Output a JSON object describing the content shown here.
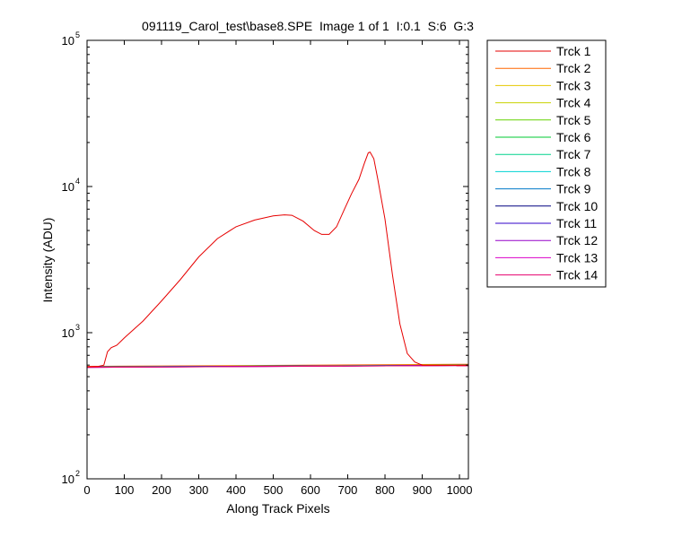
{
  "chart_data": {
    "type": "line",
    "title": "091119_Carol_test\\base8.SPE  Image 1 of 1  I:0.1  S:6  G:3",
    "xlabel": "Along Track Pixels",
    "ylabel": "Intensity (ADU)",
    "xlim": [
      0,
      1024
    ],
    "ylim": [
      100,
      100000
    ],
    "yscale": "log",
    "x_ticks": [
      0,
      100,
      200,
      300,
      400,
      500,
      600,
      700,
      800,
      900,
      1000
    ],
    "y_ticks": [
      {
        "value": 100,
        "base": "10",
        "exp": "2"
      },
      {
        "value": 1000,
        "base": "10",
        "exp": "3"
      },
      {
        "value": 10000,
        "base": "10",
        "exp": "4"
      },
      {
        "value": 100000,
        "base": "10",
        "exp": "5"
      }
    ],
    "grid": false,
    "legend_position": "outside-right",
    "series": [
      {
        "name": "Trck 1",
        "color": "#e60000",
        "x": [
          0,
          30,
          45,
          55,
          65,
          80,
          100,
          150,
          200,
          250,
          300,
          350,
          400,
          450,
          500,
          530,
          550,
          580,
          610,
          630,
          650,
          670,
          690,
          710,
          730,
          745,
          755,
          760,
          770,
          780,
          800,
          820,
          840,
          860,
          880,
          900,
          950,
          1000,
          1024
        ],
        "y": [
          585,
          588,
          600,
          740,
          790,
          820,
          920,
          1200,
          1650,
          2300,
          3300,
          4400,
          5300,
          5900,
          6300,
          6400,
          6350,
          5800,
          5000,
          4700,
          4700,
          5300,
          6900,
          8900,
          11200,
          14500,
          17000,
          17200,
          15500,
          11500,
          6000,
          2500,
          1150,
          720,
          630,
          600,
          598,
          598,
          598
        ]
      },
      {
        "name": "Trck 2",
        "color": "#ff6600",
        "x": [
          0,
          1024
        ],
        "y": [
          588,
          608
        ]
      },
      {
        "name": "Trck 3",
        "color": "#e6c800",
        "x": [
          0,
          1024
        ],
        "y": [
          585,
          602
        ]
      },
      {
        "name": "Trck 4",
        "color": "#c8d200",
        "x": [
          0,
          1024
        ],
        "y": [
          584,
          601
        ]
      },
      {
        "name": "Trck 5",
        "color": "#64d200",
        "x": [
          0,
          1024
        ],
        "y": [
          583,
          600
        ]
      },
      {
        "name": "Trck 6",
        "color": "#00c832",
        "x": [
          0,
          1024
        ],
        "y": [
          583,
          600
        ]
      },
      {
        "name": "Trck 7",
        "color": "#00d28c",
        "x": [
          0,
          1024
        ],
        "y": [
          582,
          599
        ]
      },
      {
        "name": "Trck 8",
        "color": "#00d2d2",
        "x": [
          0,
          1024
        ],
        "y": [
          582,
          599
        ]
      },
      {
        "name": "Trck 9",
        "color": "#0078c8",
        "x": [
          0,
          1024
        ],
        "y": [
          581,
          598
        ]
      },
      {
        "name": "Trck 10",
        "color": "#000080",
        "x": [
          0,
          1024
        ],
        "y": [
          581,
          598
        ]
      },
      {
        "name": "Trck 11",
        "color": "#3200c8",
        "x": [
          0,
          1024
        ],
        "y": [
          580,
          598
        ]
      },
      {
        "name": "Trck 12",
        "color": "#9600c8",
        "x": [
          0,
          1024
        ],
        "y": [
          580,
          597
        ]
      },
      {
        "name": "Trck 13",
        "color": "#dc00c8",
        "x": [
          0,
          1024
        ],
        "y": [
          580,
          597
        ]
      },
      {
        "name": "Trck 14",
        "color": "#e6006e",
        "x": [
          0,
          1024
        ],
        "y": [
          579,
          596
        ]
      }
    ]
  }
}
